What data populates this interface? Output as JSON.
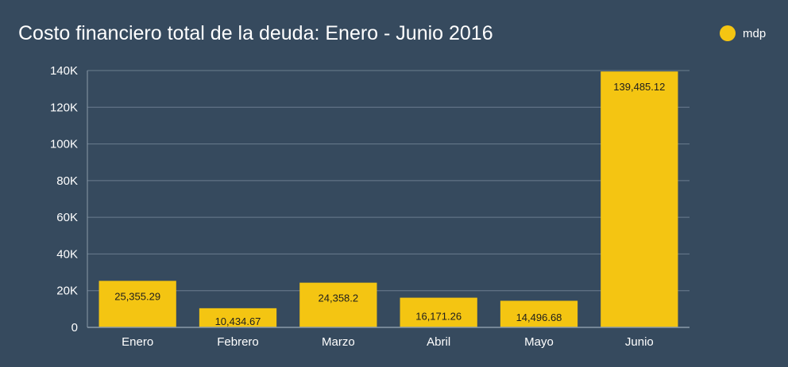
{
  "colors": {
    "background": "#364a5e",
    "bar": "#f4c512",
    "grid": "#6b7d8f",
    "axis": "#8a99a8",
    "text": "#ffffff",
    "data_label": "#1e1e1e"
  },
  "chart_data": {
    "type": "bar",
    "title": "Costo financiero total de la deuda: Enero - Junio 2016",
    "xlabel": "",
    "ylabel": "",
    "categories": [
      "Enero",
      "Febrero",
      "Marzo",
      "Abril",
      "Mayo",
      "Junio"
    ],
    "series": [
      {
        "name": "mdp",
        "values": [
          25355.29,
          10434.67,
          24358.2,
          16171.26,
          14496.68,
          139485.12
        ],
        "labels": [
          "25,355.29",
          "10,434.67",
          "24,358.2",
          "16,171.26",
          "14,496.68",
          "139,485.12"
        ]
      }
    ],
    "ylim": [
      0,
      140000
    ],
    "yticks": [
      0,
      20000,
      40000,
      60000,
      80000,
      100000,
      120000,
      140000
    ],
    "ytick_labels": [
      "0",
      "20K",
      "40K",
      "60K",
      "80K",
      "100K",
      "120K",
      "140K"
    ],
    "grid": true,
    "legend_position": "top-right"
  }
}
